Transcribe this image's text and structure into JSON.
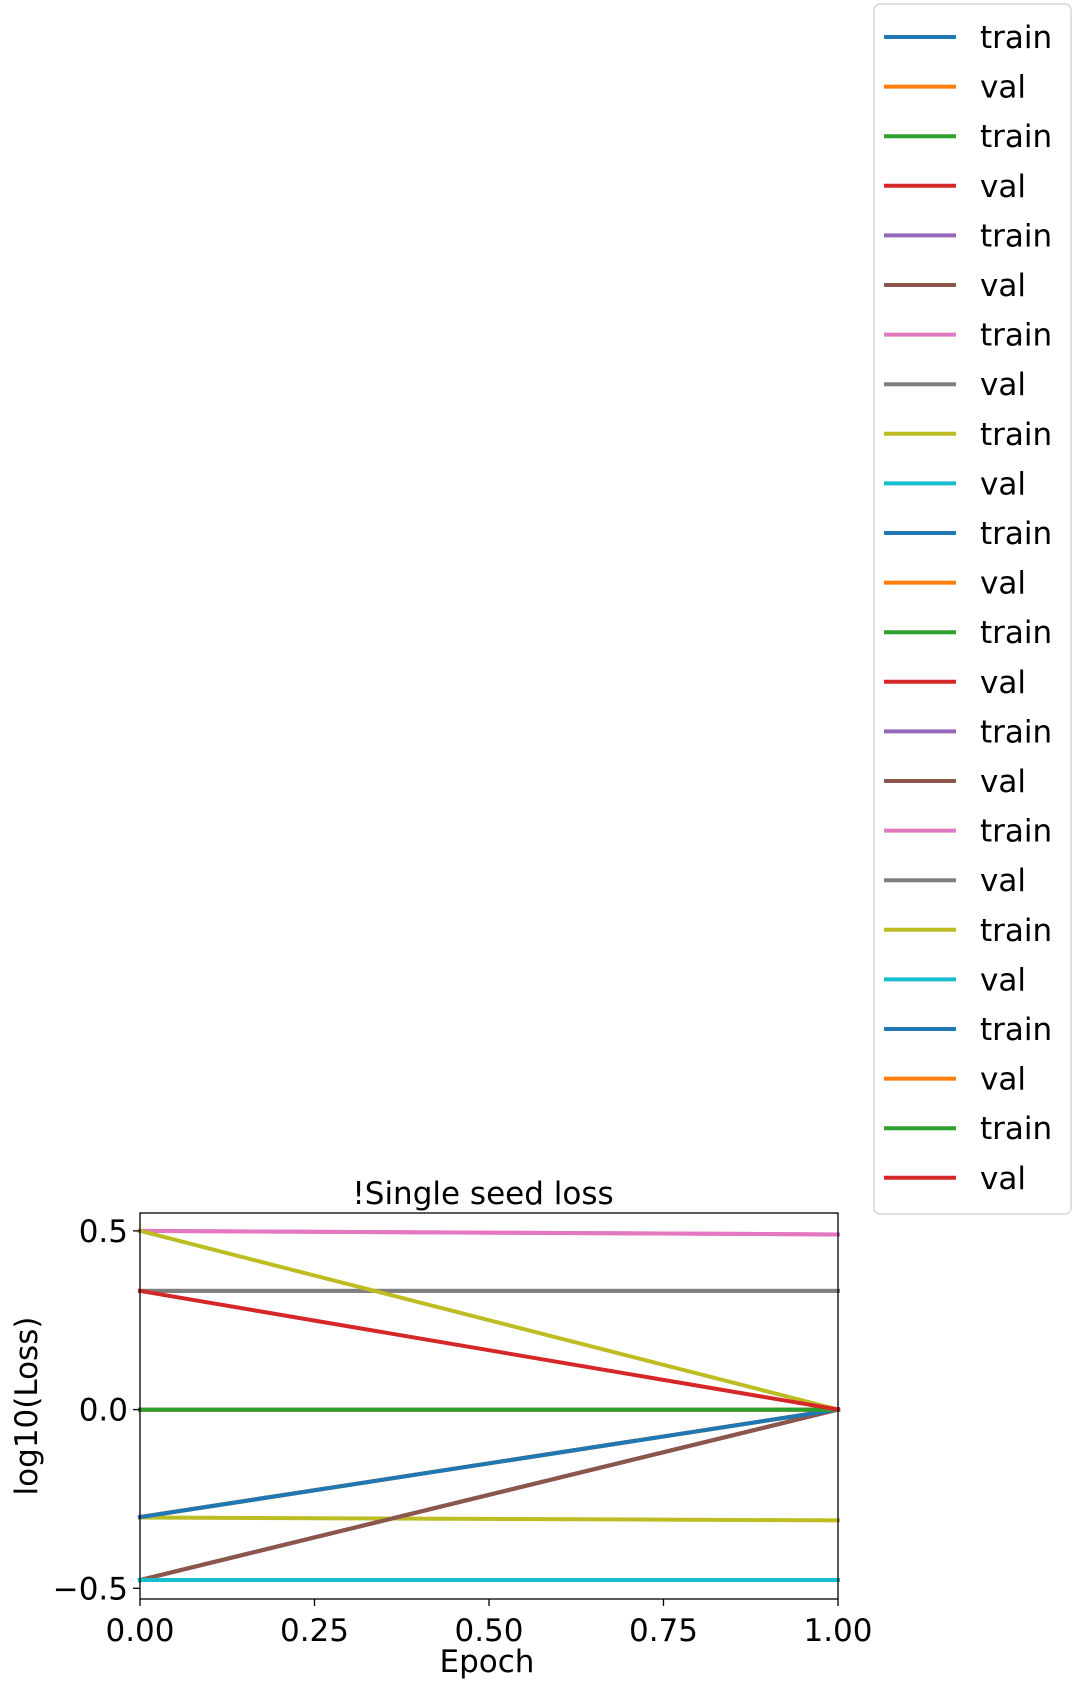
{
  "chart_data": {
    "type": "line",
    "title": "!Single seed loss",
    "xlabel": "Epoch",
    "ylabel": "log10(Loss)",
    "xlim": [
      0.0,
      1.0
    ],
    "ylim": [
      -0.53,
      0.55
    ],
    "x_ticks": [
      0.0,
      0.25,
      0.5,
      0.75,
      1.0
    ],
    "x_tick_labels": [
      "0.00",
      "0.25",
      "0.50",
      "0.75",
      "1.00"
    ],
    "y_ticks": [
      -0.5,
      0.0,
      0.5
    ],
    "y_tick_labels": [
      "−0.5",
      "0.0",
      "0.5"
    ],
    "grid": false,
    "legend_position": "outside-upper-right",
    "x": [
      0,
      1
    ],
    "series": [
      {
        "name": "train",
        "color": "#1f77b4",
        "values": [
          -0.301,
          0.0
        ]
      },
      {
        "name": "val",
        "color": "#ff7f0e",
        "values": [
          -0.301,
          0.0
        ]
      },
      {
        "name": "train",
        "color": "#2ca02c",
        "values": [
          0.0,
          0.0
        ]
      },
      {
        "name": "val",
        "color": "#d62728",
        "values": [
          0.0,
          0.0
        ]
      },
      {
        "name": "train",
        "color": "#9467bd",
        "values": [
          -0.477,
          0.0
        ]
      },
      {
        "name": "val",
        "color": "#8c564b",
        "values": [
          -0.477,
          0.0
        ]
      },
      {
        "name": "train",
        "color": "#e377c2",
        "values": [
          0.5,
          0.49
        ]
      },
      {
        "name": "val",
        "color": "#7f7f7f",
        "values": [
          0.332,
          0.332
        ]
      },
      {
        "name": "train",
        "color": "#bcbd22",
        "values": [
          -0.302,
          -0.31
        ]
      },
      {
        "name": "val",
        "color": "#17becf",
        "values": [
          -0.477,
          -0.477
        ]
      },
      {
        "name": "train",
        "color": "#1f77b4",
        "values": [
          -0.301,
          0.0
        ]
      },
      {
        "name": "val",
        "color": "#ff7f0e",
        "values": [
          -0.301,
          0.0
        ]
      },
      {
        "name": "train",
        "color": "#2ca02c",
        "values": [
          0.0,
          0.0
        ]
      },
      {
        "name": "val",
        "color": "#d62728",
        "values": [
          0.0,
          0.0
        ]
      },
      {
        "name": "train",
        "color": "#9467bd",
        "values": [
          -0.477,
          0.0
        ]
      },
      {
        "name": "val",
        "color": "#8c564b",
        "values": [
          -0.477,
          0.0
        ]
      },
      {
        "name": "train",
        "color": "#e377c2",
        "values": [
          0.5,
          0.49
        ]
      },
      {
        "name": "val",
        "color": "#7f7f7f",
        "values": [
          0.332,
          0.332
        ]
      },
      {
        "name": "train",
        "color": "#bcbd22",
        "values": [
          0.5,
          0.0
        ]
      },
      {
        "name": "val",
        "color": "#17becf",
        "values": [
          -0.477,
          -0.477
        ]
      },
      {
        "name": "train",
        "color": "#1f77b4",
        "values": [
          -0.301,
          0.0
        ]
      },
      {
        "name": "val",
        "color": "#ff7f0e",
        "values": [
          0.0,
          0.0
        ]
      },
      {
        "name": "train",
        "color": "#2ca02c",
        "values": [
          0.0,
          0.0
        ]
      },
      {
        "name": "val",
        "color": "#d62728",
        "values": [
          0.332,
          0.0
        ]
      }
    ]
  }
}
